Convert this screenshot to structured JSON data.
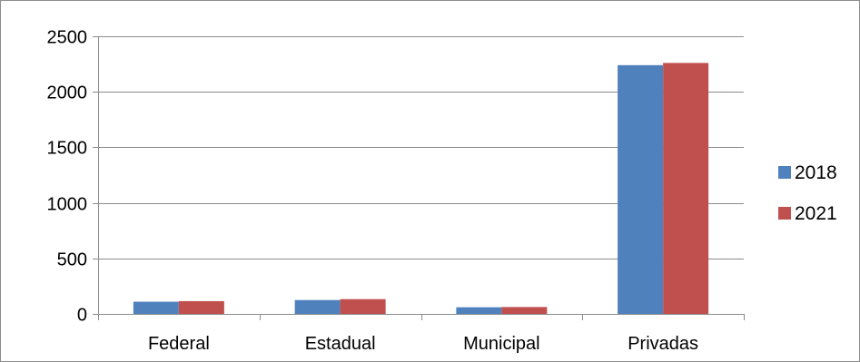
{
  "chart_data": {
    "type": "bar",
    "title": "",
    "xlabel": "",
    "ylabel": "",
    "categories": [
      "Federal",
      "Estadual",
      "Municipal",
      "Privadas"
    ],
    "series": [
      {
        "name": "2018",
        "color": "#4f81bd",
        "values": [
          110,
          125,
          60,
          2240
        ]
      },
      {
        "name": "2021",
        "color": "#c0504d",
        "values": [
          115,
          133,
          62,
          2260
        ]
      }
    ],
    "ylim": [
      0,
      2500
    ],
    "yticks": [
      "0",
      "500",
      "1000",
      "1500",
      "2000",
      "2500"
    ],
    "grid": true,
    "legend": "right"
  }
}
